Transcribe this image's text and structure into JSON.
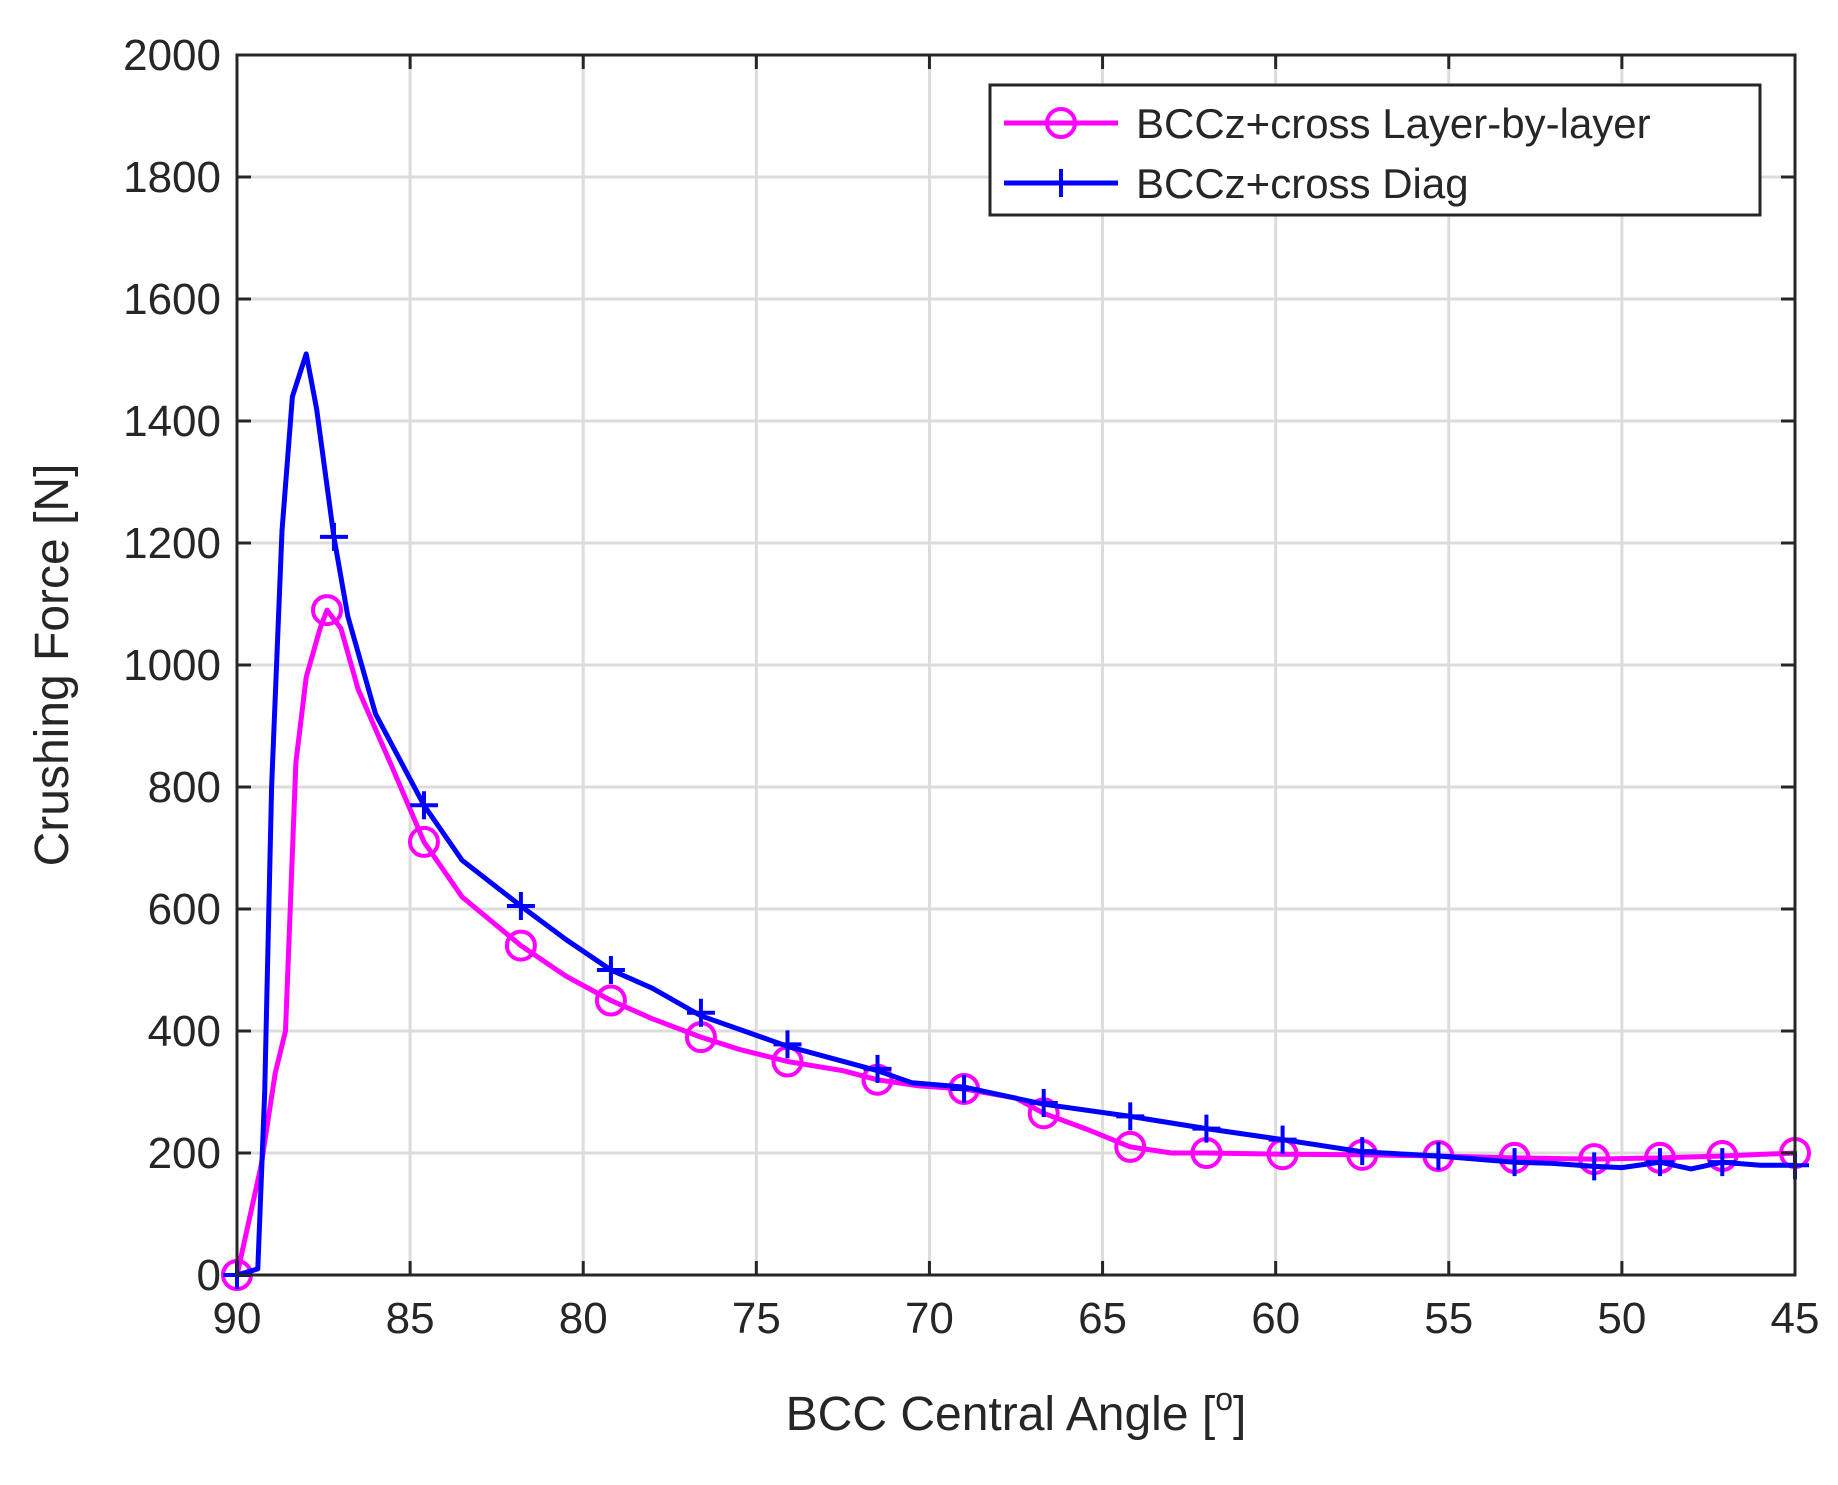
{
  "chart_data": {
    "type": "line",
    "title": "",
    "xlabel": "BCC Central Angle [",
    "xlabel_sup": "o",
    "xlabel_end": "]",
    "ylabel": "Crushing Force [N]",
    "xlim": [
      90,
      45
    ],
    "x_reversed": true,
    "ylim": [
      0,
      2000
    ],
    "xticks": [
      90,
      85,
      80,
      75,
      70,
      65,
      60,
      55,
      50,
      45
    ],
    "yticks": [
      0,
      200,
      400,
      600,
      800,
      1000,
      1200,
      1400,
      1600,
      1800,
      2000
    ],
    "grid": true,
    "legend_position": "top-right",
    "series": [
      {
        "name": "BCCz+cross Layer-by-layer",
        "color": "#ff00ff",
        "marker": "circle",
        "line": [
          [
            90,
            0
          ],
          [
            89.3,
            180
          ],
          [
            88.9,
            330
          ],
          [
            88.6,
            400
          ],
          [
            88.3,
            840
          ],
          [
            88.0,
            980
          ],
          [
            87.6,
            1060
          ],
          [
            87.4,
            1090
          ],
          [
            87.0,
            1060
          ],
          [
            86.5,
            960
          ],
          [
            85.5,
            830
          ],
          [
            84.6,
            710
          ],
          [
            83.5,
            620
          ],
          [
            81.8,
            540
          ],
          [
            80.5,
            490
          ],
          [
            79.2,
            450
          ],
          [
            78.0,
            420
          ],
          [
            76.6,
            390
          ],
          [
            75.5,
            370
          ],
          [
            74.1,
            350
          ],
          [
            72.5,
            335
          ],
          [
            71.5,
            320
          ],
          [
            70.3,
            310
          ],
          [
            69.0,
            305
          ],
          [
            67.5,
            290
          ],
          [
            66.7,
            265
          ],
          [
            65.5,
            240
          ],
          [
            64.2,
            210
          ],
          [
            63.0,
            200
          ],
          [
            62.0,
            200
          ],
          [
            59.8,
            198
          ],
          [
            57.5,
            197
          ],
          [
            55.3,
            195
          ],
          [
            53.1,
            192
          ],
          [
            50.8,
            190
          ],
          [
            48.9,
            192
          ],
          [
            47.1,
            195
          ],
          [
            45,
            200
          ]
        ],
        "markers": [
          [
            90,
            0
          ],
          [
            87.4,
            1090
          ],
          [
            84.6,
            710
          ],
          [
            81.8,
            540
          ],
          [
            79.2,
            450
          ],
          [
            76.6,
            390
          ],
          [
            74.1,
            350
          ],
          [
            71.5,
            320
          ],
          [
            69.0,
            305
          ],
          [
            66.7,
            265
          ],
          [
            64.2,
            210
          ],
          [
            62.0,
            200
          ],
          [
            59.8,
            198
          ],
          [
            57.5,
            197
          ],
          [
            55.3,
            195
          ],
          [
            53.1,
            192
          ],
          [
            50.8,
            190
          ],
          [
            48.9,
            192
          ],
          [
            47.1,
            195
          ],
          [
            45,
            200
          ]
        ]
      },
      {
        "name": "BCCz+cross Diag",
        "color": "#0000ff",
        "marker": "plus",
        "line": [
          [
            90,
            0
          ],
          [
            89.4,
            10
          ],
          [
            89.2,
            300
          ],
          [
            89.0,
            800
          ],
          [
            88.7,
            1220
          ],
          [
            88.4,
            1440
          ],
          [
            88.0,
            1510
          ],
          [
            87.7,
            1420
          ],
          [
            87.2,
            1210
          ],
          [
            86.8,
            1080
          ],
          [
            86.0,
            920
          ],
          [
            84.6,
            770
          ],
          [
            83.5,
            680
          ],
          [
            81.8,
            605
          ],
          [
            80.5,
            550
          ],
          [
            79.2,
            500
          ],
          [
            78.0,
            470
          ],
          [
            76.6,
            425
          ],
          [
            74.1,
            375
          ],
          [
            71.5,
            335
          ],
          [
            70.5,
            315
          ],
          [
            69.0,
            308
          ],
          [
            66.7,
            280
          ],
          [
            64.2,
            260
          ],
          [
            62.0,
            240
          ],
          [
            59.8,
            222
          ],
          [
            57.5,
            202
          ],
          [
            55.3,
            195
          ],
          [
            53.1,
            185
          ],
          [
            52.0,
            183
          ],
          [
            50.8,
            178
          ],
          [
            50.0,
            176
          ],
          [
            48.9,
            185
          ],
          [
            48.0,
            174
          ],
          [
            47.1,
            185
          ],
          [
            46.0,
            180
          ],
          [
            45,
            180
          ]
        ],
        "markers": [
          [
            90,
            0
          ],
          [
            87.2,
            1210
          ],
          [
            84.6,
            770
          ],
          [
            81.8,
            605
          ],
          [
            79.2,
            500
          ],
          [
            76.6,
            430
          ],
          [
            74.1,
            378
          ],
          [
            71.5,
            338
          ],
          [
            69.0,
            305
          ],
          [
            66.7,
            282
          ],
          [
            64.2,
            260
          ],
          [
            62.0,
            240
          ],
          [
            59.8,
            222
          ],
          [
            57.5,
            203
          ],
          [
            55.3,
            195
          ],
          [
            53.1,
            185
          ],
          [
            50.8,
            178
          ],
          [
            48.9,
            185
          ],
          [
            47.1,
            185
          ],
          [
            45,
            180
          ]
        ]
      }
    ]
  }
}
